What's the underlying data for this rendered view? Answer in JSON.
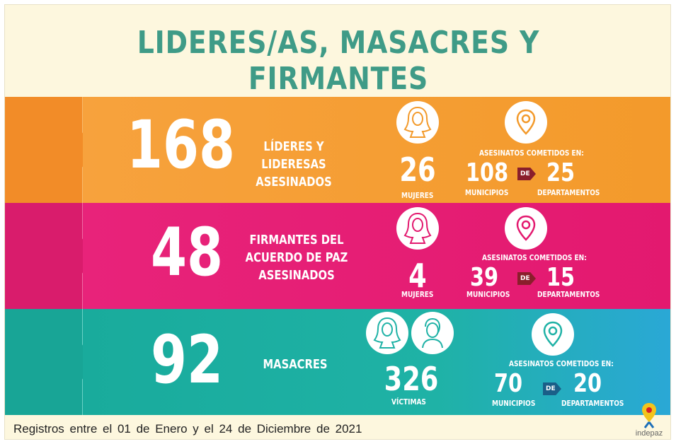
{
  "title": "LIDERES/AS, MASACRES Y FIRMANTES",
  "colors": {
    "background": "#fdf7de",
    "title": "#3f9b87",
    "band1": "#f59a33",
    "band2": "#e61b73",
    "band3": "#1eaea0",
    "de_arrow": "#8a1e2b"
  },
  "bands": [
    {
      "number": "168",
      "label_lines": [
        "LÍDERES Y LIDERESAS",
        "ASESINADOS"
      ],
      "icons": [
        "woman-icon"
      ],
      "stat_value": "26",
      "stat_label": "MUJERES",
      "places_header": "ASESINATOS COMETIDOS EN:",
      "municipios": "108",
      "municipios_label": "MUNICIPIOS",
      "de": "DE",
      "departamentos": "25",
      "departamentos_label": "DEPARTAMENTOS"
    },
    {
      "number": "48",
      "label_lines": [
        "FIRMANTES DEL",
        "ACUERDO DE PAZ",
        "ASESINADOS"
      ],
      "icons": [
        "woman-icon"
      ],
      "stat_value": "4",
      "stat_label": "MUJERES",
      "places_header": "ASESINATOS COMETIDOS EN:",
      "municipios": "39",
      "municipios_label": "MUNICIPIOS",
      "de": "DE",
      "departamentos": "15",
      "departamentos_label": "DEPARTAMENTOS"
    },
    {
      "number": "92",
      "label_lines": [
        "MASACRES"
      ],
      "icons": [
        "woman-icon",
        "man-icon"
      ],
      "stat_value": "326",
      "stat_label": "VÍCTIMAS",
      "places_header": "ASESINATOS COMETIDOS EN:",
      "municipios": "70",
      "municipios_label": "MUNICIPIOS",
      "de": "DE",
      "departamentos": "20",
      "departamentos_label": "DEPARTAMENTOS"
    }
  ],
  "footer": "Registros entre el 01 de Enero y el 24 de Diciembre de 2021",
  "logo": {
    "text": "indepaz",
    "icon": "ribbon-map-pin-icon"
  }
}
